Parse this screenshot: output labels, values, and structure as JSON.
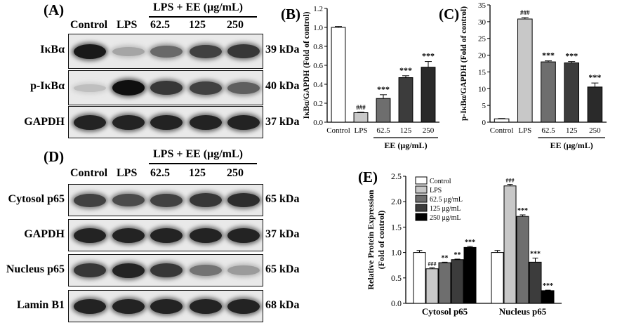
{
  "panels": {
    "A": "(A)",
    "B": "(B)",
    "C": "(C)",
    "D": "(D)",
    "E": "(E)"
  },
  "blotA": {
    "treatment_header": "LPS + EE (μg/mL)",
    "lanes": [
      "Control",
      "LPS",
      "62.5",
      "125",
      "250"
    ],
    "rows": [
      {
        "label": "IκBα",
        "kda": "39 kDa",
        "intensity": [
          0.95,
          0.25,
          0.55,
          0.75,
          0.8
        ]
      },
      {
        "label": "p-IκBα",
        "kda": "40 kDa",
        "intensity": [
          0.12,
          1.0,
          0.8,
          0.75,
          0.6
        ]
      },
      {
        "label": "GAPDH",
        "kda": "37 kDa",
        "intensity": [
          0.9,
          0.9,
          0.9,
          0.9,
          0.9
        ]
      }
    ]
  },
  "blotD": {
    "treatment_header": "LPS + EE (μg/mL)",
    "lanes": [
      "Control",
      "LPS",
      "62.5",
      "125",
      "250"
    ],
    "rows": [
      {
        "label": "Cytosol p65",
        "kda": "65 kDa",
        "intensity": [
          0.75,
          0.7,
          0.75,
          0.8,
          0.85
        ]
      },
      {
        "label": "GAPDH",
        "kda": "37 kDa",
        "intensity": [
          0.9,
          0.9,
          0.9,
          0.9,
          0.9
        ]
      },
      {
        "label": "Nucleus p65",
        "kda": "65 kDa",
        "intensity": [
          0.8,
          0.9,
          0.8,
          0.5,
          0.3
        ]
      },
      {
        "label": "Lamin B1",
        "kda": "68 kDa",
        "intensity": [
          0.9,
          0.9,
          0.9,
          0.9,
          0.9
        ]
      }
    ]
  },
  "colors": {
    "control": "#ffffff",
    "lps": "#c8c8c8",
    "d62": "#6e6e6e",
    "d125": "#3c3c3c",
    "d250": "#2a2a2a",
    "e250": "#000000"
  },
  "chart_data": [
    {
      "id": "B",
      "type": "bar",
      "categories": [
        "Control",
        "LPS",
        "62.5",
        "125",
        "250"
      ],
      "values": [
        1.0,
        0.1,
        0.25,
        0.47,
        0.58
      ],
      "errors": [
        0.01,
        0.005,
        0.04,
        0.02,
        0.06
      ],
      "annotations": [
        "",
        "###",
        "***",
        "***",
        "***"
      ],
      "ylabel": "IκBα/GAPDH (Fold of control)",
      "xlabel": "EE (μg/mL)",
      "ylim": [
        0,
        1.2
      ],
      "yticks": [
        0.0,
        0.2,
        0.4,
        0.6,
        0.8,
        1.0,
        1.2
      ]
    },
    {
      "id": "C",
      "type": "bar",
      "categories": [
        "Control",
        "LPS",
        "62.5",
        "125",
        "250"
      ],
      "values": [
        1.0,
        30.8,
        18.0,
        17.7,
        10.5
      ],
      "errors": [
        0.1,
        0.4,
        0.3,
        0.4,
        1.2
      ],
      "annotations": [
        "",
        "###",
        "***",
        "***",
        "***"
      ],
      "ylabel": "p-IκBα/GAPDH (Fold of control)",
      "xlabel": "EE (μg/mL)",
      "ylim": [
        0,
        35
      ],
      "yticks": [
        0,
        5,
        10,
        15,
        20,
        25,
        30,
        35
      ]
    },
    {
      "id": "E",
      "type": "bar",
      "categories": [
        "Cytosol p65",
        "Nucleus p65"
      ],
      "series": [
        {
          "name": "Control",
          "values": [
            1.0,
            1.0
          ],
          "errors": [
            0.04,
            0.04
          ],
          "annotations": [
            "",
            ""
          ]
        },
        {
          "name": "LPS",
          "values": [
            0.68,
            2.31
          ],
          "errors": [
            0.02,
            0.03
          ],
          "annotations": [
            "###",
            "###"
          ]
        },
        {
          "name": "62.5  μg/mL",
          "values": [
            0.8,
            1.71
          ],
          "errors": [
            0.01,
            0.03
          ],
          "annotations": [
            "**",
            "***"
          ]
        },
        {
          "name": "125  μg/mL",
          "values": [
            0.86,
            0.81
          ],
          "errors": [
            0.01,
            0.08
          ],
          "annotations": [
            "**",
            "***"
          ]
        },
        {
          "name": "250  μg/mL",
          "values": [
            1.1,
            0.25
          ],
          "errors": [
            0.02,
            0.01
          ],
          "annotations": [
            "***",
            "***"
          ]
        }
      ],
      "ylabel": "Relative Protein Expression (Fold of control)",
      "ylabel_lines": [
        "Relative Protein Expression",
        "(Fold of control)"
      ],
      "ylim": [
        0,
        2.5
      ],
      "yticks": [
        0.0,
        0.5,
        1.0,
        1.5,
        2.0,
        2.5
      ],
      "legend": "top-left"
    }
  ]
}
